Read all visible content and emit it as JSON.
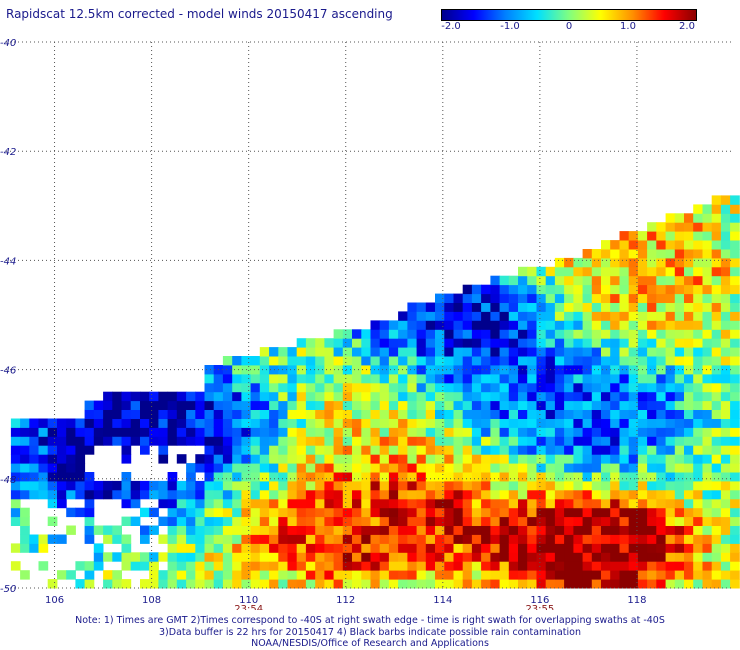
{
  "title": "Rapidscat 12.5km corrected - model winds 20150417 ascending",
  "colorbar": {
    "ticks": [
      "-2.0",
      "-1.0",
      "0",
      "1.0",
      "2.0"
    ],
    "range": [
      -2.0,
      2.0
    ],
    "colors": [
      "#00008c",
      "#0000ff",
      "#0080ff",
      "#00e0ff",
      "#80ff80",
      "#ffff00",
      "#ff9000",
      "#ff0000",
      "#8b0000"
    ]
  },
  "chart_data": {
    "type": "heatmap",
    "title": "Rapidscat 12.5km corrected - model winds 20150417 ascending",
    "xlim": [
      105,
      120
    ],
    "ylim": [
      -50,
      -40
    ],
    "x_ticks": [
      "106",
      "108",
      "110",
      "112",
      "114",
      "116",
      "118"
    ],
    "y_ticks": [
      "-40",
      "-42",
      "-44",
      "-46",
      "-48",
      "-50"
    ],
    "grid": true,
    "time_labels": [
      {
        "x": 110,
        "text": "23:54"
      },
      {
        "x": 116,
        "text": "23:55"
      }
    ],
    "value_range": [
      -2.0,
      2.0
    ],
    "regions": [
      {
        "lon": [
          109.5,
          114.5
        ],
        "lat": [
          -49.5,
          -48.0
        ],
        "value": 1.5
      },
      {
        "lon": [
          115.5,
          118.5
        ],
        "lat": [
          -49.8,
          -48.8
        ],
        "value": 2.0
      },
      {
        "lon": [
          105.5,
          110.5
        ],
        "lat": [
          -48.5,
          -46.5
        ],
        "value": -1.8
      },
      {
        "lon": [
          112.5,
          115.5
        ],
        "lat": [
          -46.5,
          -44.5
        ],
        "value": -1.7
      },
      {
        "lon": [
          111.0,
          114.0
        ],
        "lat": [
          -47.5,
          -46.0
        ],
        "value": 0.8
      },
      {
        "lon": [
          115.5,
          118.5
        ],
        "lat": [
          -47.5,
          -46.0
        ],
        "value": -1.2
      },
      {
        "lon": [
          116.5,
          119.5
        ],
        "lat": [
          -45.5,
          -43.0
        ],
        "value": 0.7
      }
    ]
  },
  "notes": [
    "Note: 1) Times are GMT 2)Times correspond to -40S at right swath edge - time is right swath for overlapping swaths at -40S",
    "3)Data buffer is 22 hrs for 20150417 4) Black barbs indicate possible rain contamination",
    "NOAA/NESDIS/Office of Research and Applications"
  ]
}
